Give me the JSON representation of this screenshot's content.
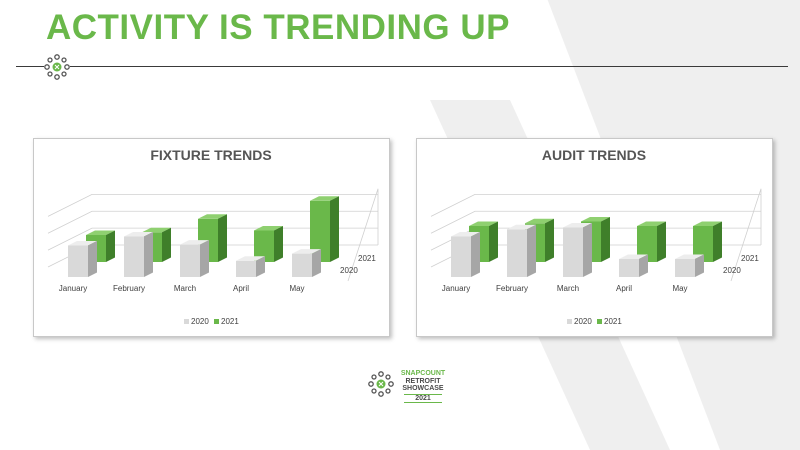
{
  "slide": {
    "title": "ACTIVITY IS TRENDING UP"
  },
  "footer": {
    "line1": "SNAPCOUNT",
    "line2": "RETROFIT",
    "line3": "SHOWCASE",
    "line4": "2021"
  },
  "colors": {
    "accent": "#6ab84a",
    "series_2020": "#d9d9d9",
    "series_2021": "#6ab84a"
  },
  "icons": {
    "title_logo": "snapcount-logo-icon",
    "footer_logo": "snapcount-logo-icon"
  },
  "chart_data": [
    {
      "type": "bar",
      "title": "FIXTURE TRENDS",
      "categories": [
        "January",
        "February",
        "March",
        "April",
        "May"
      ],
      "series": [
        {
          "name": "2020",
          "values": [
            35,
            45,
            36,
            18,
            26
          ]
        },
        {
          "name": "2021",
          "values": [
            30,
            33,
            48,
            35,
            68
          ]
        }
      ],
      "ylim": [
        0,
        100
      ],
      "grid": true,
      "legend": "bottom",
      "depth_labels": [
        "2021",
        "2020"
      ]
    },
    {
      "type": "bar",
      "title": "AUDIT TRENDS",
      "categories": [
        "January",
        "February",
        "March",
        "April",
        "May"
      ],
      "series": [
        {
          "name": "2020",
          "values": [
            45,
            53,
            55,
            20,
            20
          ]
        },
        {
          "name": "2021",
          "values": [
            40,
            43,
            45,
            40,
            40
          ]
        }
      ],
      "ylim": [
        0,
        100
      ],
      "grid": true,
      "legend": "bottom",
      "depth_labels": [
        "2021",
        "2020"
      ]
    }
  ]
}
